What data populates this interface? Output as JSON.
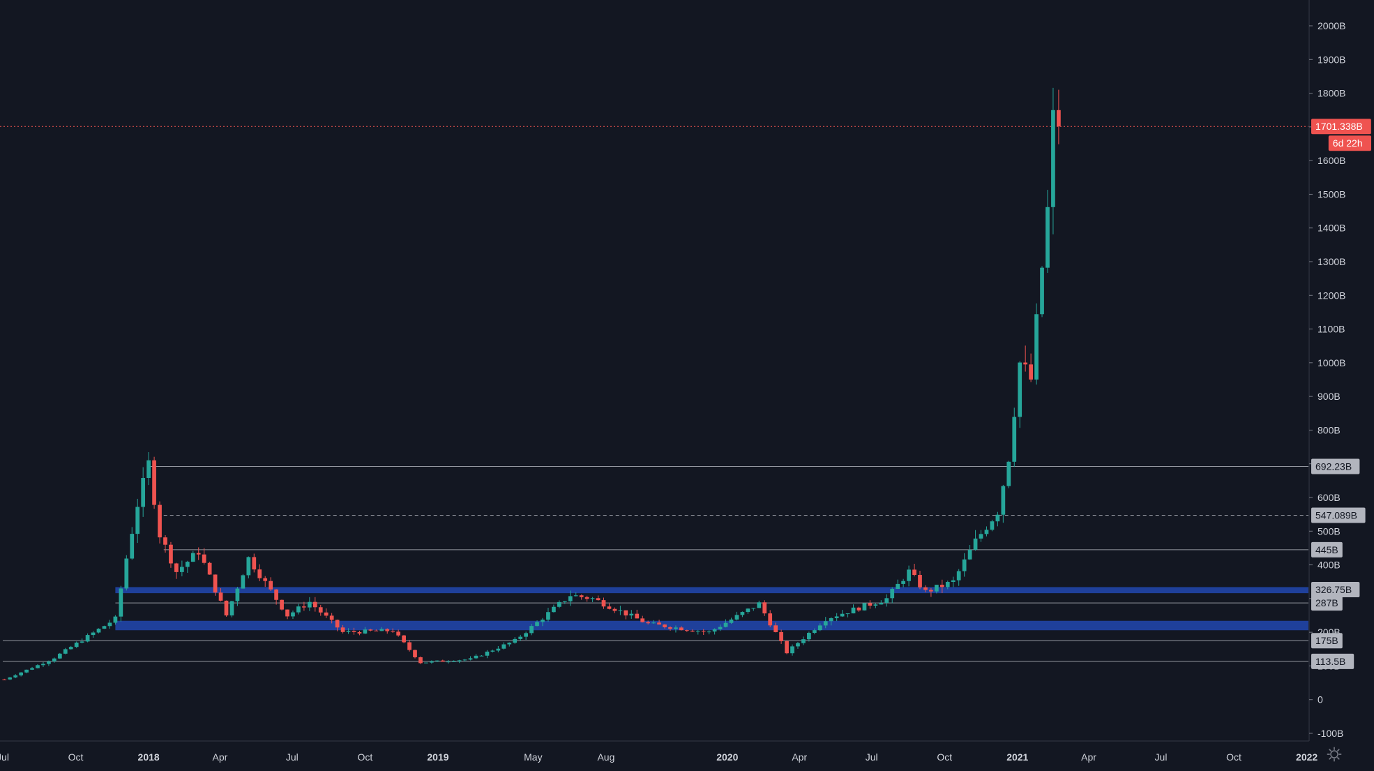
{
  "colors": {
    "background": "#131722",
    "up": "#26a69a",
    "down": "#ef5350",
    "axis_text": "#d1d4dc",
    "level_line": "#9598a1",
    "zone": "#2962ff",
    "price_line": "#ef5350",
    "level_label_bg": "#b2b5be",
    "level_label_text": "#131722"
  },
  "settings_icon": "gear-icon",
  "chart_data": {
    "type": "candlestick",
    "interval": "weekly",
    "unit": "B",
    "ylim": [
      -120,
      2050
    ],
    "xlim": [
      "2017-07-01",
      "2021-12-20"
    ],
    "grid": false,
    "y_ticks": [
      "2000B",
      "1900B",
      "1800B",
      "1700B",
      "1600B",
      "1500B",
      "1400B",
      "1300B",
      "1200B",
      "1100B",
      "1000B",
      "900B",
      "800B",
      "700B",
      "600B",
      "500B",
      "400B",
      "300B",
      "200B",
      "100B",
      "0",
      "-100B"
    ],
    "x_ticks": [
      {
        "label": "Jul",
        "date": "2017-07-01",
        "bold": false
      },
      {
        "label": "Oct",
        "date": "2017-10-01",
        "bold": false
      },
      {
        "label": "2018",
        "date": "2018-01-01",
        "bold": true
      },
      {
        "label": "Apr",
        "date": "2018-04-01",
        "bold": false
      },
      {
        "label": "Jul",
        "date": "2018-07-01",
        "bold": false
      },
      {
        "label": "Oct",
        "date": "2018-10-01",
        "bold": false
      },
      {
        "label": "2019",
        "date": "2019-01-01",
        "bold": true
      },
      {
        "label": "May",
        "date": "2019-05-01",
        "bold": false
      },
      {
        "label": "Aug",
        "date": "2019-08-01",
        "bold": false
      },
      {
        "label": "2020",
        "date": "2020-01-01",
        "bold": true
      },
      {
        "label": "Apr",
        "date": "2020-04-01",
        "bold": false
      },
      {
        "label": "Jul",
        "date": "2020-07-01",
        "bold": false
      },
      {
        "label": "Oct",
        "date": "2020-10-01",
        "bold": false
      },
      {
        "label": "2021",
        "date": "2021-01-01",
        "bold": true
      },
      {
        "label": "Apr",
        "date": "2021-04-01",
        "bold": false
      },
      {
        "label": "Jul",
        "date": "2021-07-01",
        "bold": false
      },
      {
        "label": "Oct",
        "date": "2021-10-01",
        "bold": false
      },
      {
        "label": "2022",
        "date": "2022-01-01",
        "bold": true
      }
    ],
    "horizontal_levels": [
      {
        "value": 692.23,
        "label": "692.23B",
        "style": "solid",
        "from": "2018-01-01"
      },
      {
        "value": 547.089,
        "label": "547.089B",
        "style": "dashed",
        "from": "2018-01-20"
      },
      {
        "value": 445,
        "label": "445B",
        "style": "solid",
        "from": "2018-01-20"
      },
      {
        "value": 287,
        "label": "287B",
        "style": "solid",
        "from": "2017-11-20"
      },
      {
        "value": 175,
        "label": "175B",
        "style": "solid",
        "from": "2017-07-01"
      },
      {
        "value": 113.5,
        "label": "113.5B",
        "style": "solid",
        "from": "2017-07-01"
      }
    ],
    "zones": [
      {
        "from_value": 316,
        "to_value": 334,
        "label": "326.75B",
        "from": "2017-11-20"
      },
      {
        "from_value": 206,
        "to_value": 234,
        "label": "200B",
        "from": "2017-11-20"
      }
    ],
    "last_price": {
      "value": 1701.338,
      "label": "1701.338B",
      "countdown": "6d 22h"
    },
    "key_points": [
      {
        "date": "2017-07-03",
        "close": 60
      },
      {
        "date": "2017-09-01",
        "close": 120
      },
      {
        "date": "2017-11-20",
        "close": 240
      },
      {
        "date": "2017-12-04",
        "close": 420
      },
      {
        "date": "2017-12-18",
        "close": 580
      },
      {
        "date": "2018-01-01",
        "close": 700
      },
      {
        "date": "2018-01-15",
        "close": 490
      },
      {
        "date": "2018-02-05",
        "close": 380
      },
      {
        "date": "2018-03-05",
        "close": 440
      },
      {
        "date": "2018-04-09",
        "close": 250
      },
      {
        "date": "2018-05-07",
        "close": 420
      },
      {
        "date": "2018-06-25",
        "close": 250
      },
      {
        "date": "2018-07-23",
        "close": 290
      },
      {
        "date": "2018-09-03",
        "close": 200
      },
      {
        "date": "2018-11-05",
        "close": 205
      },
      {
        "date": "2018-12-10",
        "close": 110
      },
      {
        "date": "2019-02-11",
        "close": 120
      },
      {
        "date": "2019-04-08",
        "close": 175
      },
      {
        "date": "2019-06-17",
        "close": 310
      },
      {
        "date": "2019-07-15",
        "close": 300
      },
      {
        "date": "2019-08-12",
        "close": 270
      },
      {
        "date": "2019-09-23",
        "close": 225
      },
      {
        "date": "2019-12-09",
        "close": 200
      },
      {
        "date": "2020-02-10",
        "close": 285
      },
      {
        "date": "2020-03-16",
        "close": 140
      },
      {
        "date": "2020-05-04",
        "close": 240
      },
      {
        "date": "2020-07-20",
        "close": 300
      },
      {
        "date": "2020-08-17",
        "close": 380
      },
      {
        "date": "2020-09-07",
        "close": 320
      },
      {
        "date": "2020-10-12",
        "close": 350
      },
      {
        "date": "2020-11-09",
        "close": 470
      },
      {
        "date": "2020-12-07",
        "close": 560
      },
      {
        "date": "2020-12-21",
        "close": 720
      },
      {
        "date": "2021-01-04",
        "close": 1000
      },
      {
        "date": "2021-01-18",
        "close": 950
      },
      {
        "date": "2021-02-08",
        "close": 1450
      },
      {
        "date": "2021-02-15",
        "close": 1720
      },
      {
        "date": "2021-02-22",
        "close": 1701.338
      }
    ]
  }
}
